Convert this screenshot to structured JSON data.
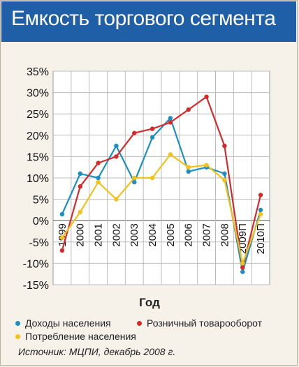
{
  "header": {
    "title": "Емкость торгового сегмента"
  },
  "chart_data": {
    "type": "line",
    "title": "Емкость торгового сегмента",
    "xlabel": "Год",
    "ylabel": "",
    "categories": [
      "1999",
      "2000",
      "2001",
      "2002",
      "2003",
      "2004",
      "2005",
      "2006",
      "2007",
      "2008",
      "2009П",
      "2010П"
    ],
    "y_ticks": [
      "35%",
      "30%",
      "25%",
      "20%",
      "15%",
      "10%",
      "5%",
      "0%",
      "-5%",
      "-10%",
      "-15%"
    ],
    "ylim": [
      -15,
      35
    ],
    "grid": true,
    "legend_position": "bottom",
    "series": [
      {
        "name": "Доходы населения",
        "color": "#1a8fc4",
        "values": [
          1.5,
          11,
          10,
          17.5,
          9,
          19.5,
          24,
          11.5,
          12.5,
          11,
          -12,
          2.5
        ]
      },
      {
        "name": "Розничный товарооборот",
        "color": "#d42a2a",
        "values": [
          -7,
          8,
          13.5,
          15,
          20.5,
          21.5,
          23,
          26,
          29,
          17.5,
          -11,
          6
        ]
      },
      {
        "name": "Потребление населения",
        "color": "#f3c21a",
        "values": [
          -4,
          2,
          9,
          5,
          10,
          10,
          15.5,
          12.5,
          13,
          9.5,
          -10,
          1.5
        ]
      }
    ]
  },
  "legend": [
    {
      "label": "Доходы населения",
      "color": "#1a8fc4"
    },
    {
      "label": "Розничный товарооборот",
      "color": "#d42a2a"
    },
    {
      "label": "Потребление населения",
      "color": "#f3c21a"
    }
  ],
  "source": "Источник: МЦПИ, декабрь 2008 г."
}
